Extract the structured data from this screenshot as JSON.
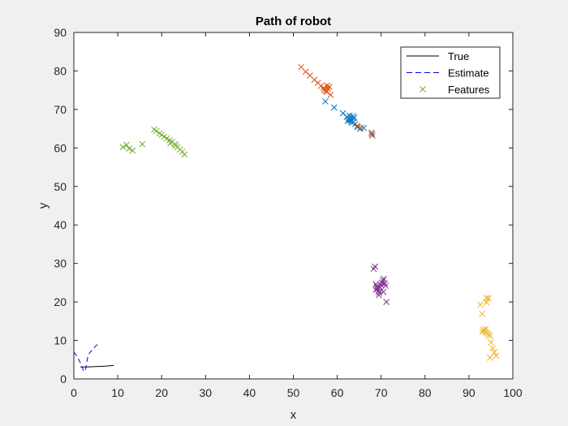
{
  "chart_data": {
    "type": "scatter",
    "title": "Path of robot",
    "xlabel": "x",
    "ylabel": "y",
    "xlim": [
      0,
      100
    ],
    "ylim": [
      0,
      90
    ],
    "xticks": [
      0,
      10,
      20,
      30,
      40,
      50,
      60,
      70,
      80,
      90,
      100
    ],
    "yticks": [
      0,
      10,
      20,
      30,
      40,
      50,
      60,
      70,
      80,
      90
    ],
    "grid": false,
    "legend_position": "top-right",
    "legend": [
      "True",
      "Estimate",
      "Features"
    ],
    "series": [
      {
        "name": "True",
        "kind": "line",
        "style": "solid",
        "color": "#000000",
        "x": [
          1.5,
          3,
          5,
          7,
          9.1
        ],
        "y": [
          3.1,
          3.1,
          3.2,
          3.3,
          3.5
        ]
      },
      {
        "name": "Estimate",
        "kind": "line",
        "style": "dashed",
        "color": "#0000ff",
        "x": [
          0,
          0.9,
          1.5,
          2.2,
          2.6,
          2.9,
          3.2,
          3.6,
          4.2,
          5.0,
          5.9
        ],
        "y": [
          7.0,
          5.5,
          4.2,
          2.2,
          2.0,
          4.0,
          6.0,
          6.8,
          7.5,
          8.6,
          9.3
        ]
      },
      {
        "name": "Features",
        "kind": "markers",
        "marker": "x",
        "clusters": [
          {
            "color": "#0072BD",
            "x": [
              57.3,
              59.3,
              61.3,
              62.2,
              62.6,
              62.9,
              63.1,
              63.4,
              63.6,
              63.9,
              62.8,
              63.3,
              64.1,
              64.6,
              65.2,
              66.0,
              67.9,
              63.7,
              62.4
            ],
            "y": [
              72.1,
              70.5,
              69.0,
              68.1,
              67.6,
              67.2,
              66.8,
              66.5,
              68.3,
              67.9,
              68.4,
              67.3,
              66.2,
              65.4,
              65.0,
              65.2,
              63.6,
              67.7,
              67.0
            ]
          },
          {
            "color": "#D95319",
            "x": [
              51.8,
              52.8,
              53.8,
              54.8,
              55.6,
              56.3,
              56.9,
              57.2,
              57.5,
              57.7,
              57.9,
              58.2,
              58.5,
              57.0,
              57.6,
              64.6,
              65.3,
              67.8,
              68.0
            ],
            "y": [
              81.0,
              79.8,
              78.8,
              77.7,
              76.9,
              76.1,
              75.6,
              75.2,
              74.8,
              76.2,
              75.4,
              75.9,
              73.8,
              75.0,
              74.6,
              65.8,
              65.2,
              64.0,
              63.2
            ]
          },
          {
            "color": "#EDB120",
            "x": [
              92.6,
              93.0,
              94.0,
              94.5,
              94.0,
              93.3,
              93.6,
              93.9,
              94.2,
              94.5,
              94.8,
              93.1,
              93.8,
              95.0,
              95.4,
              95.8,
              96.2,
              94.8
            ],
            "y": [
              19.3,
              16.9,
              21.0,
              21.0,
              19.9,
              12.8,
              12.4,
              12.1,
              11.8,
              11.5,
              11.2,
              12.3,
              13.0,
              9.5,
              8.0,
              6.9,
              6.0,
              5.5
            ]
          },
          {
            "color": "#7E2F8E",
            "x": [
              68.3,
              68.6,
              68.8,
              69.0,
              69.2,
              69.4,
              69.6,
              69.8,
              70.0,
              70.2,
              70.4,
              70.6,
              70.8,
              71.0,
              71.2,
              70.5,
              69.5,
              68.8
            ],
            "y": [
              28.6,
              29.2,
              24.6,
              24.0,
              23.4,
              22.8,
              22.4,
              23.8,
              24.4,
              25.0,
              25.6,
              26.0,
              24.8,
              24.2,
              20.0,
              22.6,
              21.8,
              23.2
            ]
          },
          {
            "color": "#77AC30",
            "x": [
              11.2,
              12.0,
              12.6,
              13.4,
              15.6,
              18.3,
              18.8,
              19.5,
              20.0,
              20.6,
              21.2,
              21.8,
              22.4,
              23.0,
              23.6,
              24.2,
              24.7,
              25.2,
              22.0,
              23.2
            ],
            "y": [
              60.2,
              60.8,
              59.8,
              59.3,
              61.0,
              64.8,
              64.4,
              63.8,
              63.4,
              62.9,
              62.5,
              62.0,
              61.6,
              61.0,
              60.2,
              59.6,
              59.0,
              58.3,
              61.2,
              60.6
            ]
          }
        ]
      }
    ]
  }
}
